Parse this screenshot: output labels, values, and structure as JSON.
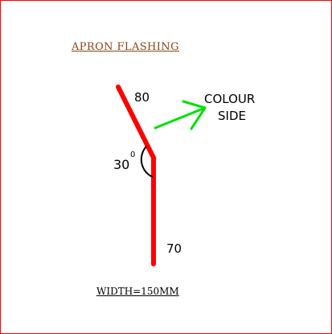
{
  "diagram": {
    "title": "APRON  FLASHING",
    "top_leg_label": "80",
    "bottom_leg_label": "70",
    "angle_value": "30",
    "angle_unit": "0",
    "colour_side_line1": "COLOUR",
    "colour_side_line2": "SIDE",
    "width_note": "WIDTH=150MM"
  },
  "colors": {
    "flashing": "#ff0000",
    "arrow": "#00e000",
    "title": "#8b4513",
    "border": "#ff0000"
  }
}
